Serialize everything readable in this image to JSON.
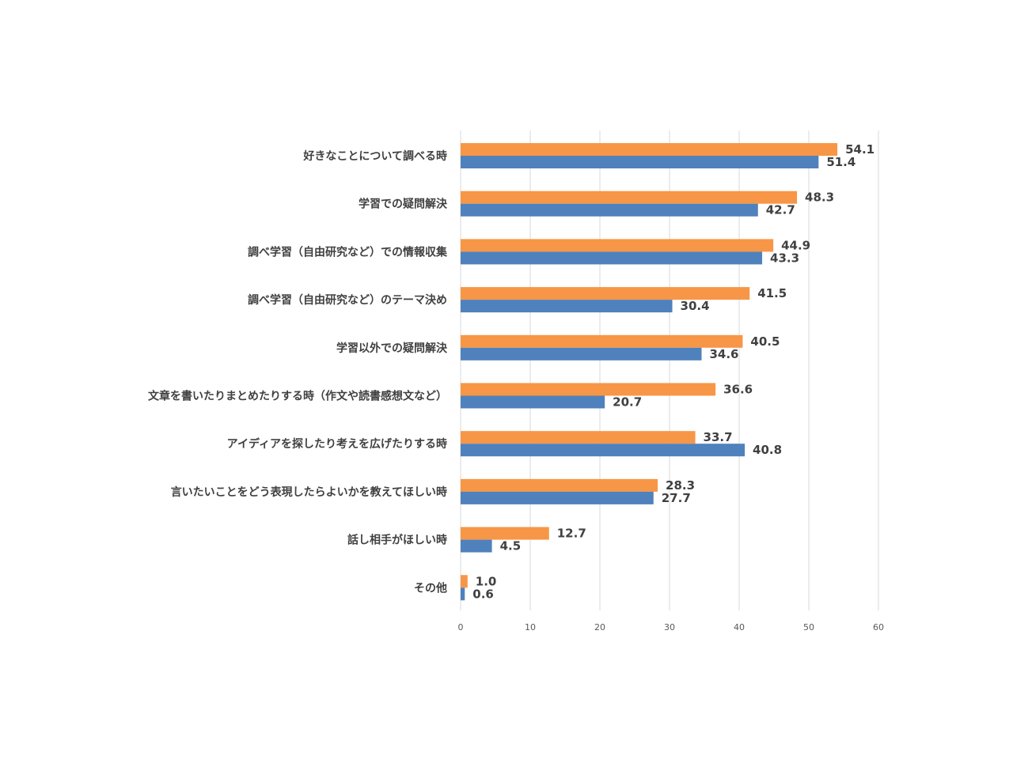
{
  "chart_data": {
    "type": "bar",
    "orientation": "horizontal",
    "categories": [
      "好きなことについて調べる時",
      "学習での疑問解決",
      "調べ学習（自由研究など）での情報収集",
      "調べ学習（自由研究など）のテーマ決め",
      "学習以外での疑問解決",
      "文章を書いたりまとめたりする時（作文や読書感想文など）",
      "アイディアを探したり考えを広げたりする時",
      "言いたいことをどう表現したらよいかを教えてほしい時",
      "話し相手がほしい時",
      "その他"
    ],
    "series": [
      {
        "values": [
          54.1,
          48.3,
          44.9,
          41.5,
          40.5,
          36.6,
          33.7,
          28.3,
          12.7,
          1.0
        ],
        "color": "#F79646"
      },
      {
        "values": [
          51.4,
          42.7,
          43.3,
          30.4,
          34.6,
          20.7,
          40.8,
          27.7,
          4.5,
          0.6
        ],
        "color": "#4F81BD"
      }
    ],
    "xlim": [
      0,
      60
    ],
    "xticks": [
      0,
      10,
      20,
      30,
      40,
      50,
      60
    ],
    "grid": true,
    "gridColor": "#D9D9D9",
    "legend": "none"
  }
}
